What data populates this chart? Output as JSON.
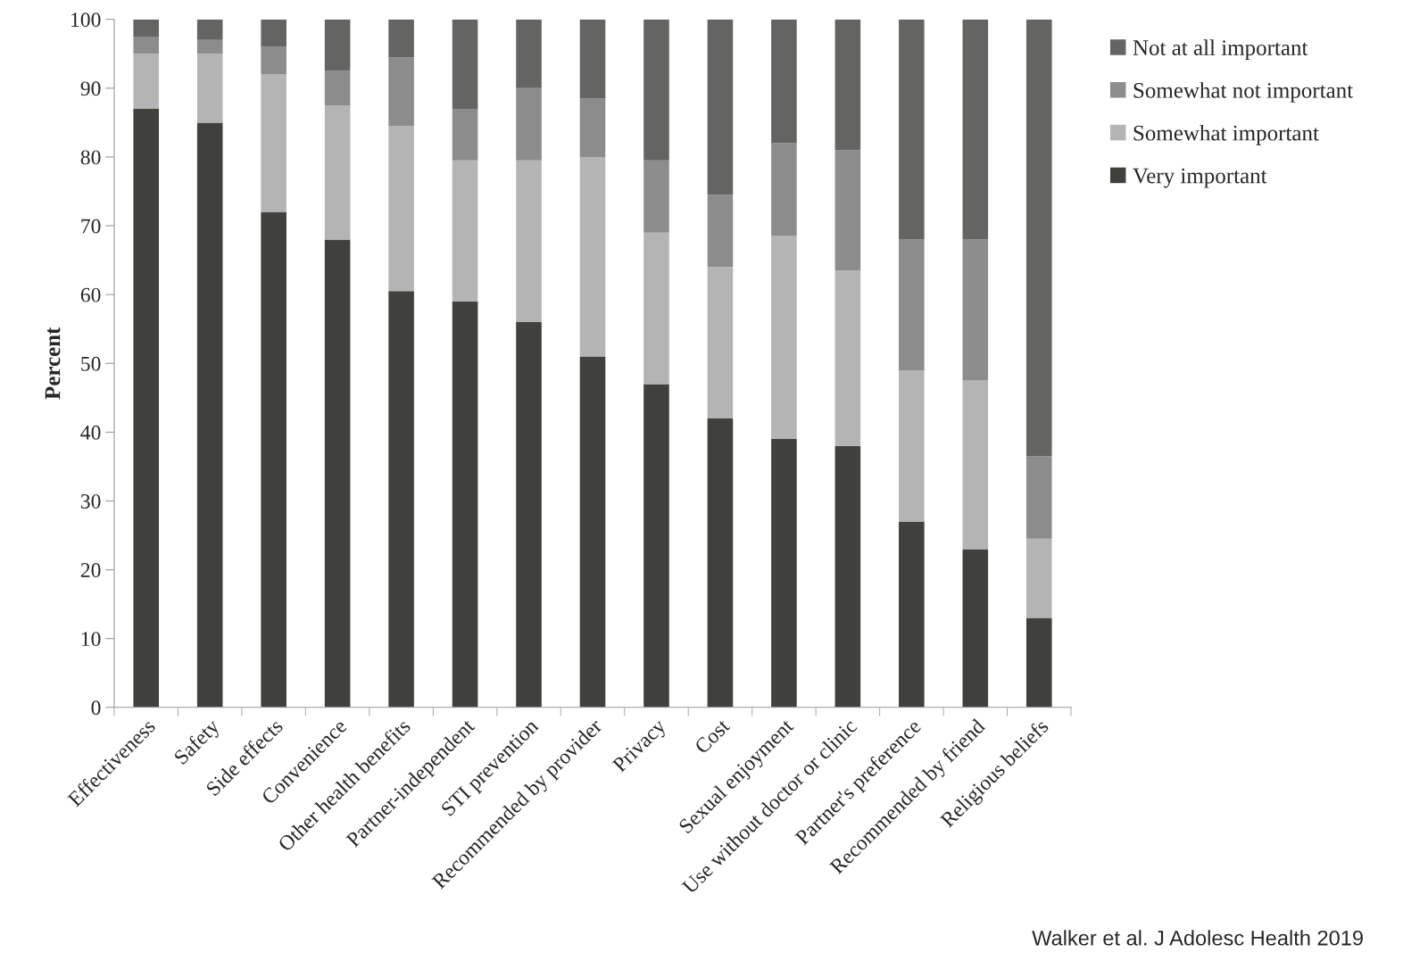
{
  "chart_data": {
    "type": "bar",
    "stacked": true,
    "ylabel": "Percent",
    "categories": [
      "Effectiveness",
      "Safety",
      "Side effects",
      "Convenience",
      "Other health benefits",
      "Partner-independent",
      "STI prevention",
      "Recommended by provider",
      "Privacy",
      "Cost",
      "Sexual enjoyment",
      "Use without doctor or clinic",
      "Partner's preference",
      "Recommended by friend",
      "Religious beliefs"
    ],
    "series": [
      {
        "name": "Very important",
        "color": "#40403d",
        "values": [
          87,
          85,
          72,
          68,
          60.5,
          59,
          56,
          51,
          47,
          42,
          39,
          38,
          27,
          23,
          13
        ]
      },
      {
        "name": "Somewhat important",
        "color": "#b4b4b4",
        "values": [
          8,
          10,
          20,
          19.5,
          24,
          20.5,
          23.5,
          29,
          22,
          22,
          29.5,
          25.5,
          22,
          24.5,
          11.5
        ]
      },
      {
        "name": "Somewhat not important",
        "color": "#8c8c8c",
        "values": [
          2.5,
          2,
          4,
          5,
          10,
          7.5,
          10.5,
          8.5,
          10.5,
          10.5,
          13.5,
          17.5,
          19,
          20.5,
          12
        ]
      },
      {
        "name": "Not at all important",
        "color": "#646462",
        "values": [
          2.5,
          3,
          4,
          7.5,
          5.5,
          13,
          10,
          11.5,
          20.5,
          25.5,
          18,
          19,
          32,
          32,
          63.5
        ]
      }
    ],
    "ylim": [
      0,
      100
    ],
    "yticks": [
      0,
      10,
      20,
      30,
      40,
      50,
      60,
      70,
      80,
      90,
      100
    ],
    "grid": false,
    "legend": "top right",
    "annotations": [
      "Walker et al. J Adolesc Health 2019"
    ]
  }
}
